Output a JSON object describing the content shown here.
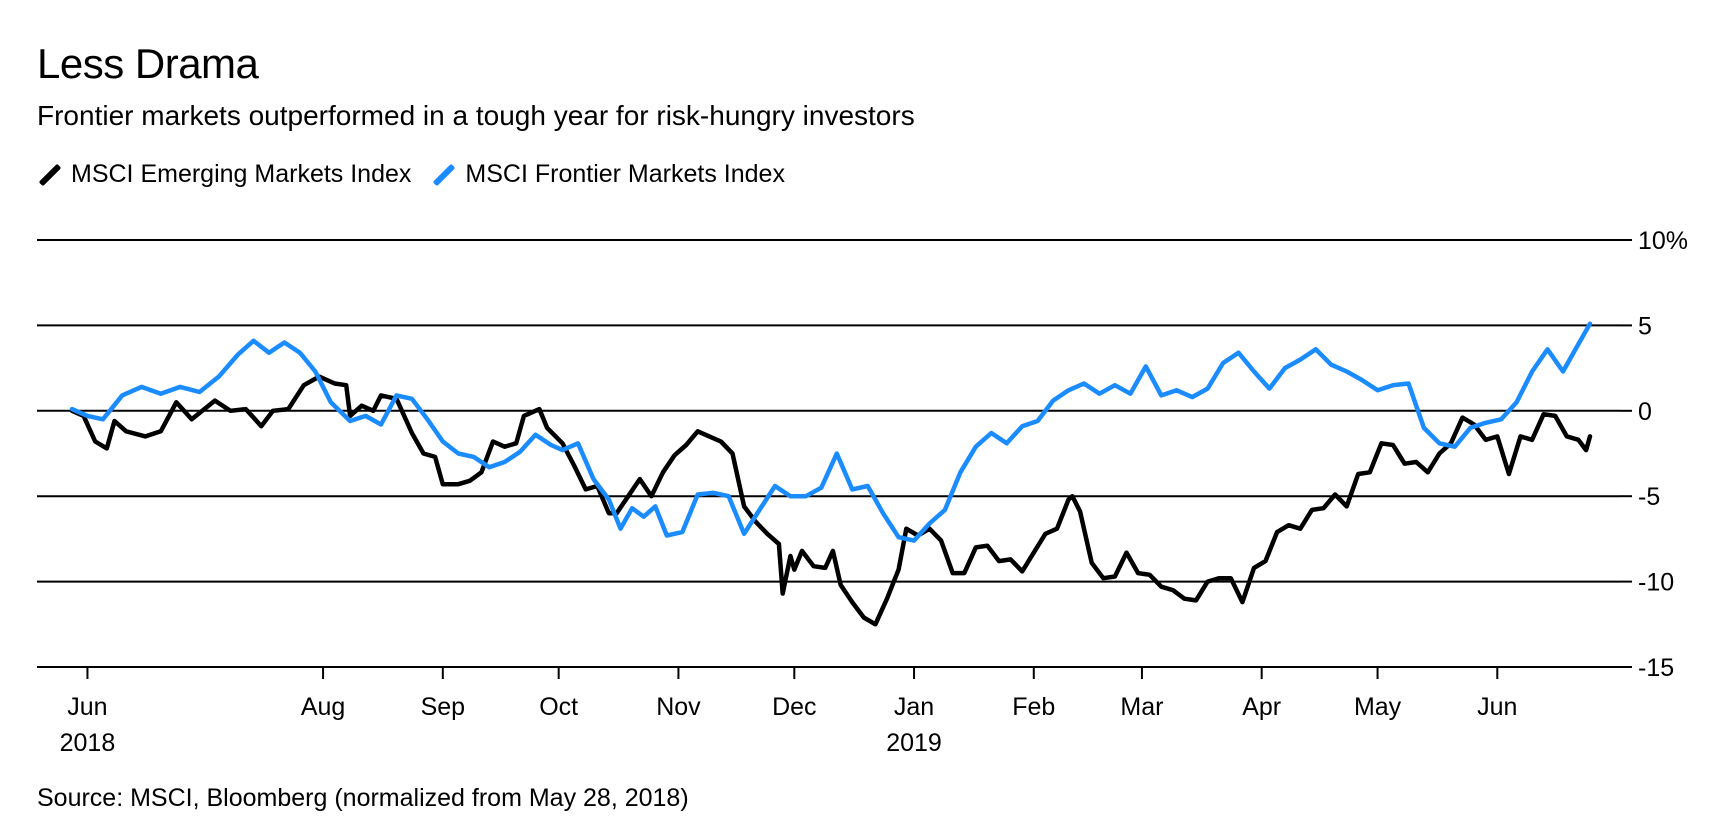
{
  "header": {
    "title": "Less Drama",
    "subtitle": "Frontier markets outperformed in a tough year for risk-hungry investors",
    "source": "Source: MSCI, Bloomberg (normalized from May 28, 2018)"
  },
  "colors": {
    "emerging": "#000000",
    "frontier": "#1a8cff",
    "grid": "#000000"
  },
  "chart_data": {
    "type": "line",
    "title": "Less Drama",
    "subtitle": "Frontier markets outperformed in a tough year for risk-hungry investors",
    "ylabel": "",
    "xlabel": "",
    "ylim": [
      -15,
      10
    ],
    "xlim": [
      "2018-05-28",
      "2019-06-25"
    ],
    "y_ticks": [
      {
        "value": 10,
        "label": "10%"
      },
      {
        "value": 5,
        "label": "5"
      },
      {
        "value": 0,
        "label": "0"
      },
      {
        "value": -5,
        "label": "-5"
      },
      {
        "value": -10,
        "label": "-10"
      },
      {
        "value": -15,
        "label": "-15"
      }
    ],
    "x_ticks": [
      {
        "date": "2018-06-01",
        "label": "Jun",
        "sublabel": "2018"
      },
      {
        "date": "2018-08-01",
        "label": "Aug",
        "sublabel": ""
      },
      {
        "date": "2018-09-01",
        "label": "Sep",
        "sublabel": ""
      },
      {
        "date": "2018-10-01",
        "label": "Oct",
        "sublabel": ""
      },
      {
        "date": "2018-11-01",
        "label": "Nov",
        "sublabel": ""
      },
      {
        "date": "2018-12-01",
        "label": "Dec",
        "sublabel": ""
      },
      {
        "date": "2019-01-01",
        "label": "Jan",
        "sublabel": "2019"
      },
      {
        "date": "2019-02-01",
        "label": "Feb",
        "sublabel": ""
      },
      {
        "date": "2019-03-01",
        "label": "Mar",
        "sublabel": ""
      },
      {
        "date": "2019-04-01",
        "label": "Apr",
        "sublabel": ""
      },
      {
        "date": "2019-05-01",
        "label": "May",
        "sublabel": ""
      },
      {
        "date": "2019-06-01",
        "label": "Jun",
        "sublabel": ""
      }
    ],
    "legend_position": "top-left",
    "grid": "horizontal",
    "series": [
      {
        "name": "MSCI Emerging Markets Index",
        "color": "#000000",
        "points": [
          [
            "2018-05-28",
            0
          ],
          [
            "2018-05-31",
            -0.3
          ],
          [
            "2018-06-03",
            -1.8
          ],
          [
            "2018-06-06",
            -2.2
          ],
          [
            "2018-06-08",
            -0.6
          ],
          [
            "2018-06-11",
            -1.2
          ],
          [
            "2018-06-16",
            -1.5
          ],
          [
            "2018-06-20",
            -1.2
          ],
          [
            "2018-06-24",
            0.5
          ],
          [
            "2018-06-28",
            -0.5
          ],
          [
            "2018-07-04",
            0.6
          ],
          [
            "2018-07-08",
            0
          ],
          [
            "2018-07-12",
            0.1
          ],
          [
            "2018-07-16",
            -0.9
          ],
          [
            "2018-07-19",
            0
          ],
          [
            "2018-07-23",
            0.1
          ],
          [
            "2018-07-27",
            1.5
          ],
          [
            "2018-07-31",
            2.0
          ],
          [
            "2018-08-04",
            1.6
          ],
          [
            "2018-08-07",
            1.5
          ],
          [
            "2018-08-08",
            -0.3
          ],
          [
            "2018-08-11",
            0.3
          ],
          [
            "2018-08-14",
            0
          ],
          [
            "2018-08-16",
            0.9
          ],
          [
            "2018-08-20",
            0.7
          ],
          [
            "2018-08-24",
            -1.3
          ],
          [
            "2018-08-27",
            -2.5
          ],
          [
            "2018-08-30",
            -2.7
          ],
          [
            "2018-09-01",
            -4.3
          ],
          [
            "2018-09-05",
            -4.3
          ],
          [
            "2018-09-08",
            -4.1
          ],
          [
            "2018-09-11",
            -3.6
          ],
          [
            "2018-09-14",
            -1.8
          ],
          [
            "2018-09-17",
            -2.1
          ],
          [
            "2018-09-20",
            -1.9
          ],
          [
            "2018-09-22",
            -0.3
          ],
          [
            "2018-09-26",
            0.1
          ],
          [
            "2018-09-28",
            -1.0
          ],
          [
            "2018-10-02",
            -1.9
          ],
          [
            "2018-10-05",
            -3.2
          ],
          [
            "2018-10-08",
            -4.6
          ],
          [
            "2018-10-11",
            -4.4
          ],
          [
            "2018-10-14",
            -6.0
          ],
          [
            "2018-10-16",
            -6.0
          ],
          [
            "2018-10-19",
            -5.0
          ],
          [
            "2018-10-22",
            -4.0
          ],
          [
            "2018-10-25",
            -5.0
          ],
          [
            "2018-10-28",
            -3.6
          ],
          [
            "2018-10-31",
            -2.6
          ],
          [
            "2018-11-03",
            -2.0
          ],
          [
            "2018-11-06",
            -1.2
          ],
          [
            "2018-11-09",
            -1.5
          ],
          [
            "2018-11-12",
            -1.8
          ],
          [
            "2018-11-15",
            -2.5
          ],
          [
            "2018-11-18",
            -5.6
          ],
          [
            "2018-11-21",
            -6.5
          ],
          [
            "2018-11-24",
            -7.2
          ],
          [
            "2018-11-27",
            -7.8
          ],
          [
            "2018-11-28",
            -10.7
          ],
          [
            "2018-11-30",
            -8.5
          ],
          [
            "2018-12-01",
            -9.3
          ],
          [
            "2018-12-03",
            -8.2
          ],
          [
            "2018-12-06",
            -9.1
          ],
          [
            "2018-12-09",
            -9.2
          ],
          [
            "2018-12-11",
            -8.2
          ],
          [
            "2018-12-13",
            -10.2
          ],
          [
            "2018-12-16",
            -11.2
          ],
          [
            "2018-12-19",
            -12.1
          ],
          [
            "2018-12-22",
            -12.5
          ],
          [
            "2018-12-25",
            -11.0
          ],
          [
            "2018-12-28",
            -9.3
          ],
          [
            "2018-12-30",
            -6.9
          ],
          [
            "2019-01-02",
            -7.3
          ],
          [
            "2019-01-05",
            -6.9
          ],
          [
            "2019-01-08",
            -7.6
          ],
          [
            "2019-01-11",
            -9.5
          ],
          [
            "2019-01-14",
            -9.5
          ],
          [
            "2019-01-17",
            -8.0
          ],
          [
            "2019-01-20",
            -7.9
          ],
          [
            "2019-01-23",
            -8.8
          ],
          [
            "2019-01-26",
            -8.7
          ],
          [
            "2019-01-29",
            -9.4
          ],
          [
            "2019-02-01",
            -8.3
          ],
          [
            "2019-02-04",
            -7.2
          ],
          [
            "2019-02-07",
            -6.9
          ],
          [
            "2019-02-10",
            -5.2
          ],
          [
            "2019-02-11",
            -5.0
          ],
          [
            "2019-02-13",
            -5.9
          ],
          [
            "2019-02-16",
            -8.9
          ],
          [
            "2019-02-19",
            -9.8
          ],
          [
            "2019-02-22",
            -9.7
          ],
          [
            "2019-02-25",
            -8.3
          ],
          [
            "2019-02-28",
            -9.5
          ],
          [
            "2019-03-03",
            -9.6
          ],
          [
            "2019-03-06",
            -10.3
          ],
          [
            "2019-03-09",
            -10.5
          ],
          [
            "2019-03-12",
            -11.0
          ],
          [
            "2019-03-15",
            -11.1
          ],
          [
            "2019-03-18",
            -10.0
          ],
          [
            "2019-03-21",
            -9.8
          ],
          [
            "2019-03-24",
            -9.8
          ],
          [
            "2019-03-27",
            -11.2
          ],
          [
            "2019-03-30",
            -9.2
          ],
          [
            "2019-04-02",
            -8.8
          ],
          [
            "2019-04-05",
            -7.1
          ],
          [
            "2019-04-08",
            -6.7
          ],
          [
            "2019-04-11",
            -6.9
          ],
          [
            "2019-04-14",
            -5.8
          ],
          [
            "2019-04-17",
            -5.7
          ],
          [
            "2019-04-20",
            -4.9
          ],
          [
            "2019-04-23",
            -5.6
          ],
          [
            "2019-04-26",
            -3.7
          ],
          [
            "2019-04-29",
            -3.6
          ],
          [
            "2019-05-02",
            -1.9
          ],
          [
            "2019-05-05",
            -2.0
          ],
          [
            "2019-05-08",
            -3.1
          ],
          [
            "2019-05-11",
            -3.0
          ],
          [
            "2019-05-14",
            -3.6
          ],
          [
            "2019-05-17",
            -2.5
          ],
          [
            "2019-05-20",
            -1.9
          ],
          [
            "2019-05-23",
            -0.4
          ],
          [
            "2019-05-26",
            -0.8
          ],
          [
            "2019-05-29",
            -1.7
          ],
          [
            "2019-06-01",
            -1.5
          ],
          [
            "2019-06-04",
            -3.7
          ],
          [
            "2019-06-07",
            -1.5
          ],
          [
            "2019-06-10",
            -1.7
          ],
          [
            "2019-06-13",
            -0.2
          ],
          [
            "2019-06-16",
            -0.3
          ],
          [
            "2019-06-19",
            -1.5
          ],
          [
            "2019-06-22",
            -1.7
          ],
          [
            "2019-06-24",
            -2.3
          ],
          [
            "2019-06-25",
            -1.5
          ]
        ]
      },
      {
        "name": "MSCI Frontier Markets Index",
        "color": "#1a8cff",
        "points": [
          [
            "2018-05-28",
            0.1
          ],
          [
            "2018-06-01",
            -0.3
          ],
          [
            "2018-06-05",
            -0.5
          ],
          [
            "2018-06-10",
            0.9
          ],
          [
            "2018-06-15",
            1.4
          ],
          [
            "2018-06-20",
            1.0
          ],
          [
            "2018-06-25",
            1.4
          ],
          [
            "2018-06-30",
            1.1
          ],
          [
            "2018-07-05",
            2.0
          ],
          [
            "2018-07-10",
            3.3
          ],
          [
            "2018-07-14",
            4.1
          ],
          [
            "2018-07-18",
            3.4
          ],
          [
            "2018-07-22",
            4.0
          ],
          [
            "2018-07-26",
            3.4
          ],
          [
            "2018-07-30",
            2.3
          ],
          [
            "2018-08-03",
            0.5
          ],
          [
            "2018-08-08",
            -0.6
          ],
          [
            "2018-08-12",
            -0.3
          ],
          [
            "2018-08-16",
            -0.8
          ],
          [
            "2018-08-20",
            0.9
          ],
          [
            "2018-08-24",
            0.7
          ],
          [
            "2018-08-28",
            -0.5
          ],
          [
            "2018-09-01",
            -1.8
          ],
          [
            "2018-09-05",
            -2.5
          ],
          [
            "2018-09-09",
            -2.7
          ],
          [
            "2018-09-13",
            -3.3
          ],
          [
            "2018-09-17",
            -3.0
          ],
          [
            "2018-09-21",
            -2.4
          ],
          [
            "2018-09-25",
            -1.4
          ],
          [
            "2018-09-29",
            -2.0
          ],
          [
            "2018-10-02",
            -2.3
          ],
          [
            "2018-10-06",
            -1.9
          ],
          [
            "2018-10-10",
            -4.0
          ],
          [
            "2018-10-14",
            -5.2
          ],
          [
            "2018-10-17",
            -6.9
          ],
          [
            "2018-10-20",
            -5.7
          ],
          [
            "2018-10-23",
            -6.2
          ],
          [
            "2018-10-26",
            -5.6
          ],
          [
            "2018-10-29",
            -7.3
          ],
          [
            "2018-11-02",
            -7.1
          ],
          [
            "2018-11-06",
            -4.9
          ],
          [
            "2018-11-10",
            -4.8
          ],
          [
            "2018-11-14",
            -5.0
          ],
          [
            "2018-11-18",
            -7.2
          ],
          [
            "2018-11-22",
            -5.8
          ],
          [
            "2018-11-26",
            -4.4
          ],
          [
            "2018-11-30",
            -5.0
          ],
          [
            "2018-12-04",
            -5.0
          ],
          [
            "2018-12-08",
            -4.5
          ],
          [
            "2018-12-12",
            -2.5
          ],
          [
            "2018-12-16",
            -4.6
          ],
          [
            "2018-12-20",
            -4.4
          ],
          [
            "2018-12-24",
            -6.0
          ],
          [
            "2018-12-28",
            -7.4
          ],
          [
            "2019-01-01",
            -7.6
          ],
          [
            "2019-01-05",
            -6.6
          ],
          [
            "2019-01-09",
            -5.8
          ],
          [
            "2019-01-13",
            -3.6
          ],
          [
            "2019-01-17",
            -2.1
          ],
          [
            "2019-01-21",
            -1.3
          ],
          [
            "2019-01-25",
            -1.9
          ],
          [
            "2019-01-29",
            -0.9
          ],
          [
            "2019-02-02",
            -0.6
          ],
          [
            "2019-02-06",
            0.6
          ],
          [
            "2019-02-10",
            1.2
          ],
          [
            "2019-02-14",
            1.6
          ],
          [
            "2019-02-18",
            1.0
          ],
          [
            "2019-02-22",
            1.5
          ],
          [
            "2019-02-26",
            1.0
          ],
          [
            "2019-03-02",
            2.6
          ],
          [
            "2019-03-06",
            0.9
          ],
          [
            "2019-03-10",
            1.2
          ],
          [
            "2019-03-14",
            0.8
          ],
          [
            "2019-03-18",
            1.3
          ],
          [
            "2019-03-22",
            2.8
          ],
          [
            "2019-03-26",
            3.4
          ],
          [
            "2019-03-30",
            2.3
          ],
          [
            "2019-04-03",
            1.3
          ],
          [
            "2019-04-07",
            2.5
          ],
          [
            "2019-04-11",
            3.0
          ],
          [
            "2019-04-15",
            3.6
          ],
          [
            "2019-04-19",
            2.7
          ],
          [
            "2019-04-23",
            2.3
          ],
          [
            "2019-04-27",
            1.8
          ],
          [
            "2019-05-01",
            1.2
          ],
          [
            "2019-05-05",
            1.5
          ],
          [
            "2019-05-09",
            1.6
          ],
          [
            "2019-05-13",
            -1.0
          ],
          [
            "2019-05-17",
            -1.9
          ],
          [
            "2019-05-21",
            -2.1
          ],
          [
            "2019-05-25",
            -1.0
          ],
          [
            "2019-05-29",
            -0.7
          ],
          [
            "2019-06-02",
            -0.5
          ],
          [
            "2019-06-06",
            0.5
          ],
          [
            "2019-06-10",
            2.3
          ],
          [
            "2019-06-14",
            3.6
          ],
          [
            "2019-06-18",
            2.3
          ],
          [
            "2019-06-21",
            3.5
          ],
          [
            "2019-06-25",
            5.1
          ]
        ]
      }
    ]
  }
}
